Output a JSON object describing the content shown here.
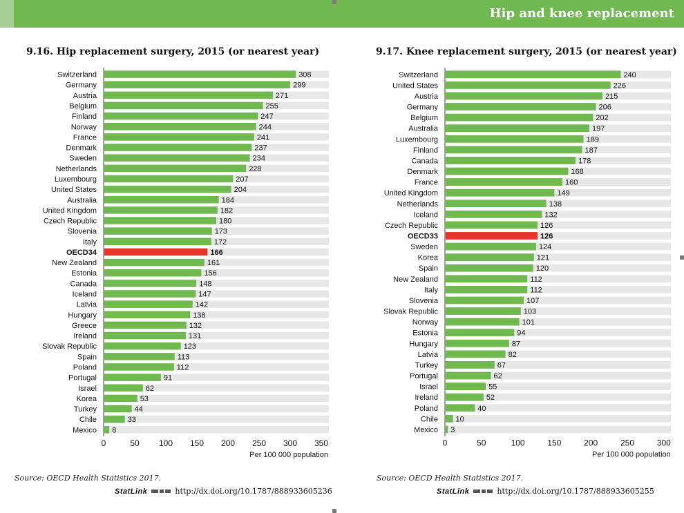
{
  "header": {
    "section_title": "Hip and knee replacement"
  },
  "charts": [
    {
      "title": "9.16. Hip replacement surgery, 2015 (or nearest year)",
      "source": "Source: OECD Health Statistics 2017.",
      "statlink_label": "StatLink",
      "statlink_url": "http://dx.doi.org/10.1787/888933605236"
    },
    {
      "title": "9.17. Knee replacement surgery, 2015 (or nearest year)",
      "source": "Source: OECD Health Statistics 2017.",
      "statlink_label": "StatLink",
      "statlink_url": "http://dx.doi.org/10.1787/888933605255"
    }
  ],
  "colors": {
    "bar": "#6fb94f",
    "highlight": "#e8352b",
    "band": "#e7e7e7",
    "header": "#6fb94f"
  },
  "chart_data": [
    {
      "type": "bar",
      "orientation": "horizontal",
      "title": "9.16. Hip replacement surgery, 2015 (or nearest year)",
      "xlabel": "Per 100 000 population",
      "xlim": [
        0,
        350
      ],
      "xticks": [
        0,
        50,
        100,
        150,
        200,
        250,
        300,
        350
      ],
      "highlight": "OECD34",
      "categories": [
        "Switzerland",
        "Germany",
        "Austria",
        "Belgium",
        "Finland",
        "Norway",
        "France",
        "Denmark",
        "Sweden",
        "Netherlands",
        "Luxembourg",
        "United States",
        "Australia",
        "United Kingdom",
        "Czech Republic",
        "Slovenia",
        "Italy",
        "OECD34",
        "New Zealand",
        "Estonia",
        "Canada",
        "Iceland",
        "Latvia",
        "Hungary",
        "Greece",
        "Ireland",
        "Slovak Republic",
        "Spain",
        "Poland",
        "Portugal",
        "Israel",
        "Korea",
        "Turkey",
        "Chile",
        "Mexico"
      ],
      "values": [
        308,
        299,
        271,
        255,
        247,
        244,
        241,
        237,
        234,
        228,
        207,
        204,
        184,
        182,
        180,
        173,
        172,
        166,
        161,
        156,
        148,
        147,
        142,
        138,
        132,
        131,
        123,
        113,
        112,
        91,
        62,
        53,
        44,
        33,
        8
      ]
    },
    {
      "type": "bar",
      "orientation": "horizontal",
      "title": "9.17. Knee replacement surgery, 2015 (or nearest year)",
      "xlabel": "Per 100 000 population",
      "xlim": [
        0,
        300
      ],
      "xticks": [
        0,
        50,
        100,
        150,
        200,
        250,
        300
      ],
      "highlight": "OECD33",
      "categories": [
        "Switzerland",
        "United States",
        "Austria",
        "Germany",
        "Belgium",
        "Australia",
        "Luxembourg",
        "Finland",
        "Canada",
        "Denmark",
        "France",
        "United Kingdom",
        "Netherlands",
        "Iceland",
        "Czech Republic",
        "OECD33",
        "Sweden",
        "Korea",
        "Spain",
        "New Zealand",
        "Italy",
        "Slovenia",
        "Slovak Republic",
        "Norway",
        "Estonia",
        "Hungary",
        "Latvia",
        "Turkey",
        "Portugal",
        "Israel",
        "Ireland",
        "Poland",
        "Chile",
        "Mexico"
      ],
      "values": [
        240,
        226,
        215,
        206,
        202,
        197,
        189,
        187,
        178,
        168,
        160,
        149,
        138,
        132,
        126,
        126,
        124,
        121,
        120,
        112,
        112,
        107,
        103,
        101,
        94,
        87,
        82,
        67,
        62,
        55,
        52,
        40,
        10,
        3
      ]
    }
  ]
}
